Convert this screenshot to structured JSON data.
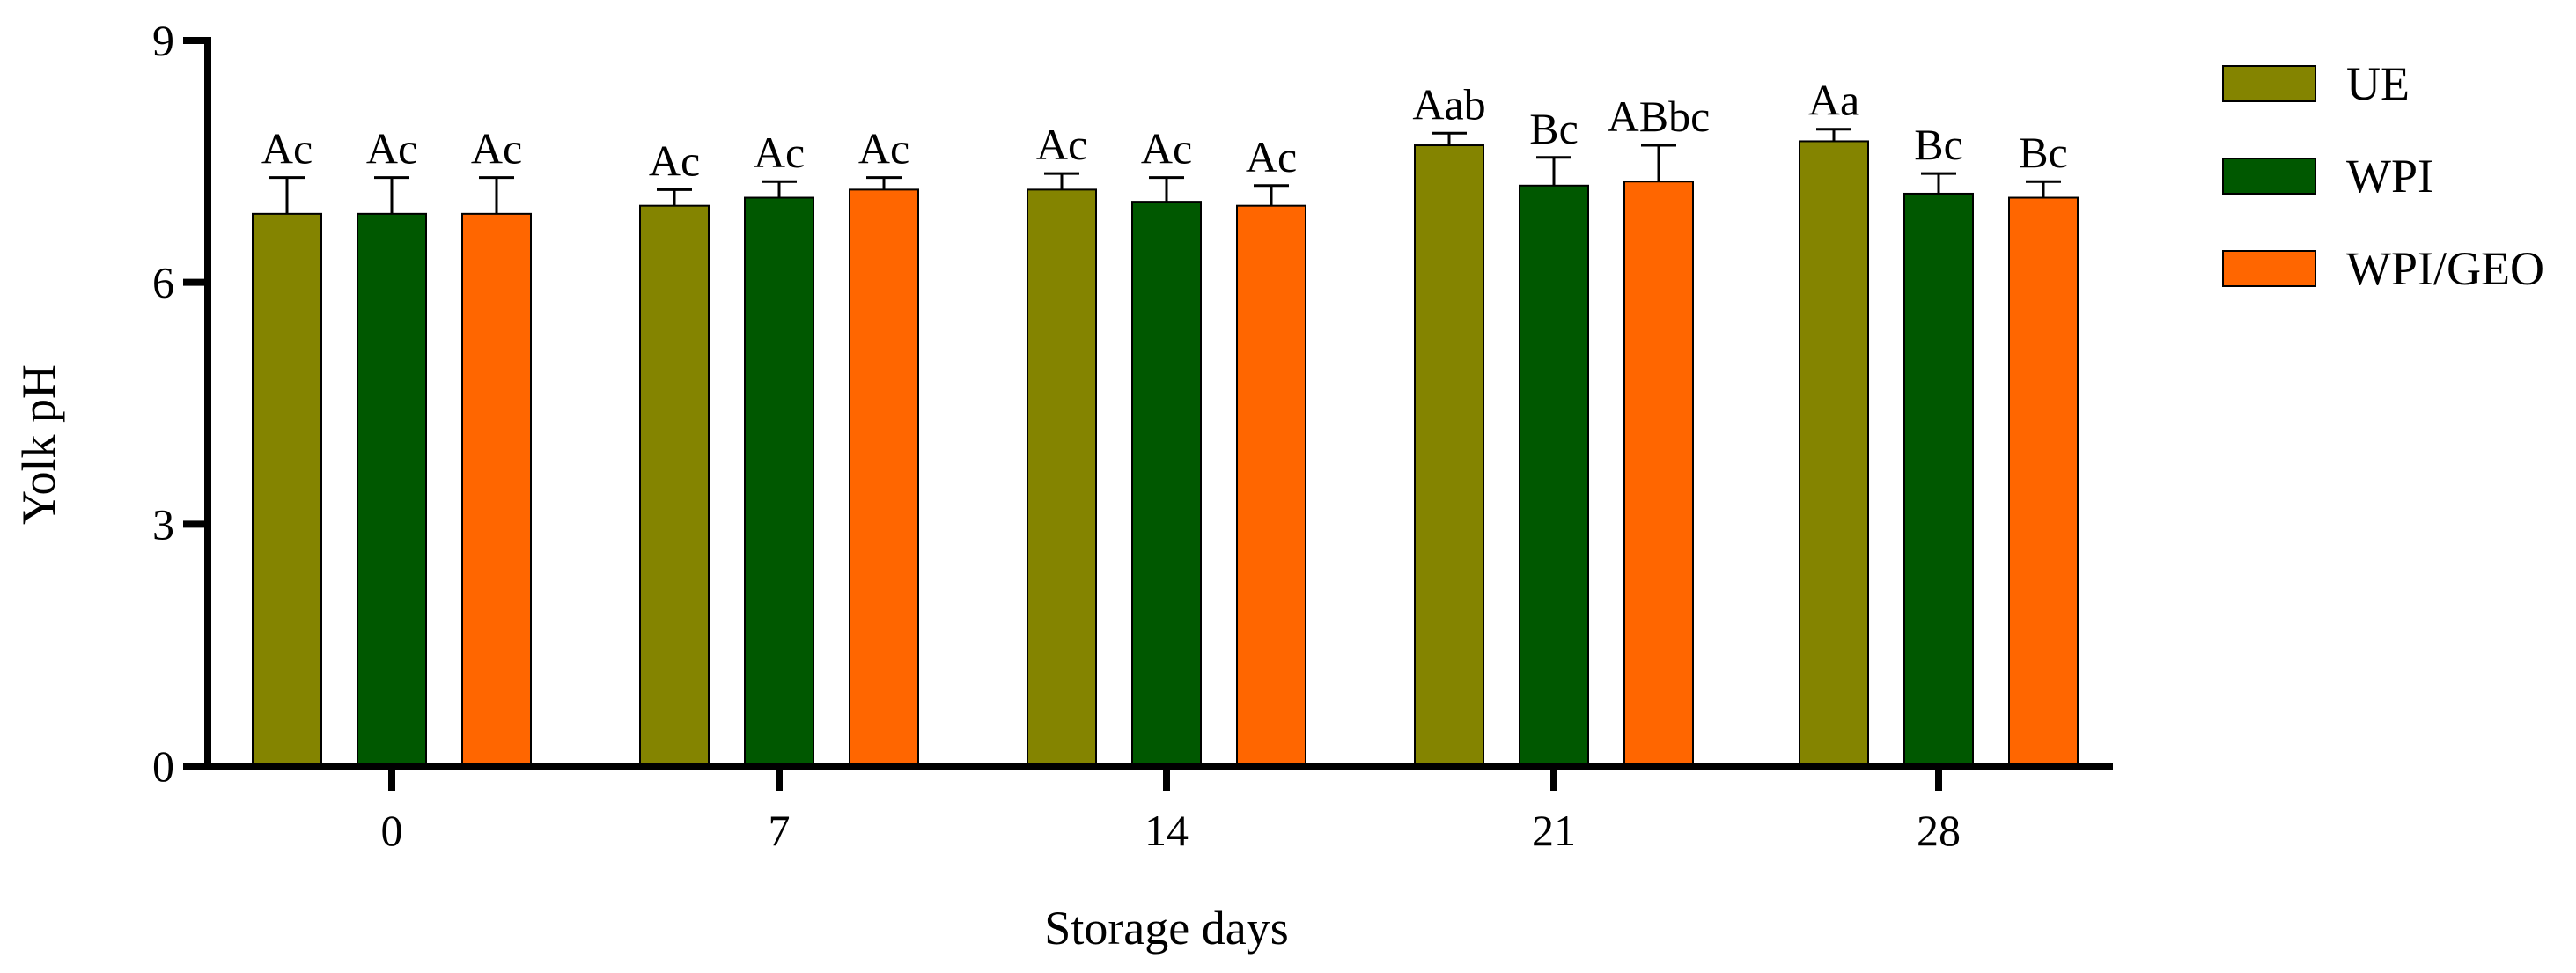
{
  "chart_data": {
    "type": "bar",
    "title": "",
    "xlabel": "Storage days",
    "ylabel": "Yolk pH",
    "categories": [
      "0",
      "7",
      "14",
      "21",
      "28"
    ],
    "ylim": [
      0,
      9
    ],
    "yticks": [
      "0",
      "3",
      "6",
      "9"
    ],
    "grid": false,
    "legend_position": "right",
    "series": [
      {
        "name": "UE",
        "color": "#848400",
        "values": [
          6.85,
          6.95,
          7.15,
          7.7,
          7.75
        ],
        "errors": [
          0.45,
          0.2,
          0.2,
          0.15,
          0.15
        ],
        "labels": [
          "Ac",
          "Ac",
          "Ac",
          "Aab",
          "Aa"
        ]
      },
      {
        "name": "WPI",
        "color": "#005800",
        "values": [
          6.85,
          7.05,
          7.0,
          7.2,
          7.1
        ],
        "errors": [
          0.45,
          0.2,
          0.3,
          0.35,
          0.25
        ],
        "labels": [
          "Ac",
          "Ac",
          "Ac",
          "Bc",
          "Bc"
        ]
      },
      {
        "name": "WPI/GEO",
        "color": "#FF6600",
        "values": [
          6.85,
          7.15,
          6.95,
          7.25,
          7.05
        ],
        "errors": [
          0.45,
          0.15,
          0.25,
          0.45,
          0.2
        ],
        "labels": [
          "Ac",
          "Ac",
          "Ac",
          "ABbc",
          "Bc"
        ]
      }
    ]
  }
}
